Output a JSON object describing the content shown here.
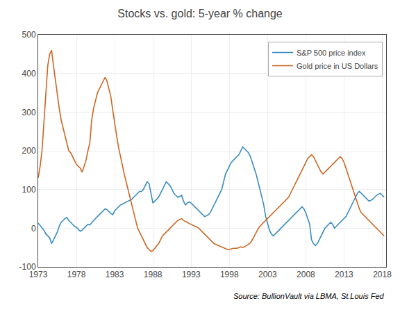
{
  "chart_data": {
    "type": "line",
    "title": "Stocks vs. gold: 5-year % change",
    "annotations": [
      "Source: BullionVault via LBMA, St.Louis Fed"
    ],
    "x": [
      1973.0,
      1973.25,
      1973.5,
      1973.75,
      1974.0,
      1974.25,
      1974.5,
      1974.75,
      1975.0,
      1975.25,
      1975.5,
      1975.75,
      1976.0,
      1976.25,
      1976.5,
      1976.75,
      1977.0,
      1977.25,
      1977.5,
      1977.75,
      1978.0,
      1978.25,
      1978.5,
      1978.75,
      1979.0,
      1979.25,
      1979.5,
      1979.75,
      1980.0,
      1980.25,
      1980.5,
      1980.75,
      1981.0,
      1981.25,
      1981.5,
      1981.75,
      1982.0,
      1982.25,
      1982.5,
      1982.75,
      1983.0,
      1983.25,
      1983.5,
      1983.75,
      1984.0,
      1984.25,
      1984.5,
      1984.75,
      1985.0,
      1985.25,
      1985.5,
      1985.75,
      1986.0,
      1986.25,
      1986.5,
      1986.75,
      1987.0,
      1987.25,
      1987.5,
      1987.75,
      1988.0,
      1988.25,
      1988.5,
      1988.75,
      1989.0,
      1989.25,
      1989.5,
      1989.75,
      1990.0,
      1990.25,
      1990.5,
      1990.75,
      1991.0,
      1991.25,
      1991.5,
      1991.75,
      1992.0,
      1992.25,
      1992.5,
      1992.75,
      1993.0,
      1993.25,
      1993.5,
      1993.75,
      1994.0,
      1994.25,
      1994.5,
      1994.75,
      1995.0,
      1995.25,
      1995.5,
      1995.75,
      1996.0,
      1996.25,
      1996.5,
      1996.75,
      1997.0,
      1997.25,
      1997.5,
      1997.75,
      1998.0,
      1998.25,
      1998.5,
      1998.75,
      1999.0,
      1999.25,
      1999.5,
      1999.75,
      2000.0,
      2000.25,
      2000.5,
      2000.75,
      2001.0,
      2001.25,
      2001.5,
      2001.75,
      2002.0,
      2002.25,
      2002.5,
      2002.75,
      2003.0,
      2003.25,
      2003.5,
      2003.75,
      2004.0,
      2004.25,
      2004.5,
      2004.75,
      2005.0,
      2005.25,
      2005.5,
      2005.75,
      2006.0,
      2006.25,
      2006.5,
      2006.75,
      2007.0,
      2007.25,
      2007.5,
      2007.75,
      2008.0,
      2008.25,
      2008.5,
      2008.75,
      2009.0,
      2009.25,
      2009.5,
      2009.75,
      2010.0,
      2010.25,
      2010.5,
      2010.75,
      2011.0,
      2011.25,
      2011.5,
      2011.75,
      2012.0,
      2012.25,
      2012.5,
      2012.75,
      2013.0,
      2013.25,
      2013.5,
      2013.75,
      2014.0,
      2014.25,
      2014.5,
      2014.75,
      2015.0,
      2015.25,
      2015.5,
      2015.75,
      2016.0,
      2016.25,
      2016.5,
      2016.75,
      2017.0,
      2017.25,
      2017.5,
      2017.75,
      2018.0,
      2018.25
    ],
    "series": [
      {
        "name": "S&P 500 price index",
        "color": "#3a8bbf",
        "values": [
          13.0,
          7.0,
          2.0,
          -5.0,
          -15.0,
          -20.0,
          -25.0,
          -40.0,
          -30.0,
          -20.0,
          -10.0,
          5.0,
          15.0,
          20.0,
          25.0,
          28.0,
          20.0,
          15.0,
          10.0,
          5.0,
          2.0,
          -3.0,
          -8.0,
          -5.0,
          0.0,
          5.0,
          10.0,
          8.0,
          15.0,
          20.0,
          25.0,
          30.0,
          35.0,
          40.0,
          45.0,
          50.0,
          48.0,
          42.0,
          38.0,
          35.0,
          45.0,
          50.0,
          55.0,
          60.0,
          62.0,
          65.0,
          68.0,
          70.0,
          72.0,
          75.0,
          80.0,
          85.0,
          90.0,
          95.0,
          95.0,
          100.0,
          110.0,
          120.0,
          115.0,
          90.0,
          65.0,
          70.0,
          75.0,
          80.0,
          90.0,
          100.0,
          110.0,
          120.0,
          115.0,
          110.0,
          100.0,
          90.0,
          85.0,
          80.0,
          82.0,
          85.0,
          70.0,
          60.0,
          65.0,
          68.0,
          65.0,
          60.0,
          55.0,
          50.0,
          45.0,
          40.0,
          35.0,
          30.0,
          32.0,
          35.0,
          40.0,
          50.0,
          60.0,
          70.0,
          80.0,
          90.0,
          100.0,
          120.0,
          140.0,
          150.0,
          160.0,
          170.0,
          175.0,
          180.0,
          185.0,
          190.0,
          200.0,
          210.0,
          205.0,
          200.0,
          195.0,
          185.0,
          170.0,
          155.0,
          140.0,
          120.0,
          100.0,
          80.0,
          60.0,
          30.0,
          10.0,
          -5.0,
          -15.0,
          -20.0,
          -15.0,
          -10.0,
          -5.0,
          0.0,
          5.0,
          10.0,
          15.0,
          20.0,
          25.0,
          30.0,
          35.0,
          40.0,
          45.0,
          50.0,
          55.0,
          50.0,
          40.0,
          25.0,
          10.0,
          -30.0,
          -40.0,
          -45.0,
          -40.0,
          -30.0,
          -20.0,
          -10.0,
          0.0,
          5.0,
          10.0,
          15.0,
          10.0,
          0.0,
          5.0,
          10.0,
          15.0,
          20.0,
          25.0,
          30.0,
          40.0,
          50.0,
          60.0,
          70.0,
          80.0,
          90.0,
          95.0,
          90.0,
          85.0,
          80.0,
          75.0,
          70.0,
          72.0,
          75.0,
          80.0,
          85.0,
          88.0,
          90.0,
          85.0,
          80.0
        ]
      },
      {
        "name": "Gold price in US Dollars",
        "color": "#cc6622",
        "values": [
          130.0,
          160.0,
          200.0,
          280.0,
          360.0,
          420.0,
          450.0,
          460.0,
          420.0,
          380.0,
          340.0,
          310.0,
          280.0,
          260.0,
          240.0,
          215.0,
          200.0,
          195.0,
          185.0,
          175.0,
          165.0,
          160.0,
          155.0,
          145.0,
          160.0,
          175.0,
          200.0,
          220.0,
          280.0,
          310.0,
          330.0,
          350.0,
          360.0,
          370.0,
          380.0,
          390.0,
          380.0,
          360.0,
          340.0,
          305.0,
          270.0,
          240.0,
          210.0,
          185.0,
          160.0,
          140.0,
          120.0,
          100.0,
          80.0,
          60.0,
          40.0,
          20.0,
          0.0,
          -10.0,
          -20.0,
          -30.0,
          -40.0,
          -50.0,
          -55.0,
          -60.0,
          -58.0,
          -52.0,
          -45.0,
          -40.0,
          -30.0,
          -20.0,
          -15.0,
          -10.0,
          -5.0,
          0.0,
          5.0,
          10.0,
          15.0,
          20.0,
          22.0,
          25.0,
          20.0,
          18.0,
          15.0,
          12.0,
          10.0,
          8.0,
          5.0,
          3.0,
          0.0,
          -5.0,
          -10.0,
          -15.0,
          -20.0,
          -25.0,
          -30.0,
          -35.0,
          -40.0,
          -42.0,
          -44.0,
          -46.0,
          -48.0,
          -50.0,
          -52.0,
          -55.0,
          -55.0,
          -53.0,
          -52.0,
          -52.0,
          -52.0,
          -50.0,
          -48.0,
          -50.0,
          -48.0,
          -45.0,
          -42.0,
          -38.0,
          -30.0,
          -20.0,
          -10.0,
          -2.0,
          5.0,
          10.0,
          15.0,
          20.0,
          25.0,
          30.0,
          35.0,
          40.0,
          45.0,
          50.0,
          55.0,
          60.0,
          65.0,
          70.0,
          75.0,
          80.0,
          90.0,
          100.0,
          110.0,
          120.0,
          130.0,
          140.0,
          150.0,
          160.0,
          170.0,
          180.0,
          185.0,
          190.0,
          185.0,
          175.0,
          165.0,
          155.0,
          145.0,
          140.0,
          145.0,
          150.0,
          155.0,
          160.0,
          165.0,
          170.0,
          175.0,
          180.0,
          185.0,
          180.0,
          170.0,
          155.0,
          140.0,
          125.0,
          110.0,
          95.0,
          80.0,
          65.0,
          50.0,
          40.0,
          35.0,
          30.0,
          25.0,
          20.0,
          15.0,
          10.0,
          5.0,
          0.0,
          -5.0,
          -10.0,
          -15.0,
          -20.0
        ]
      }
    ],
    "xlim": [
      1973,
      2018.5
    ],
    "xticks": [
      1973,
      1978,
      1983,
      1988,
      1993,
      1998,
      2003,
      2008,
      2013,
      2018
    ],
    "ylim": [
      -100,
      500
    ],
    "yticks": [
      -100,
      0,
      100,
      200,
      300,
      400,
      500
    ],
    "grid": true,
    "legend": "upper right"
  }
}
